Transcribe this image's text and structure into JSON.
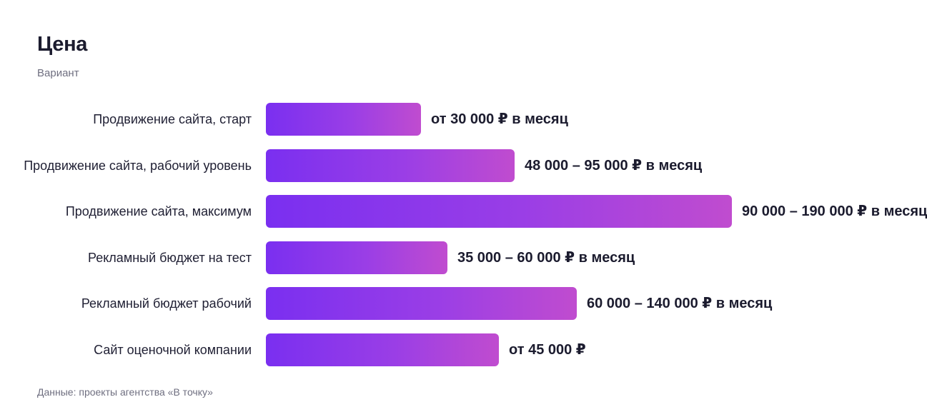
{
  "chart_data": {
    "type": "bar",
    "orientation": "horizontal",
    "title": "Цена",
    "subtitle": "Вариант",
    "source": "Данные: проекты агентства «В точку»",
    "categories": [
      "Продвижение сайта, старт",
      "Продвижение сайта, рабочий уровень",
      "Продвижение сайта, максимум",
      "Рекламный бюджет на тест",
      "Рекламный бюджет рабочий",
      "Сайт оценочной компании"
    ],
    "value_labels": [
      "от 30 000 ₽ в месяц",
      "48 000 – 95 000 ₽ в месяц",
      "90 000 – 190 000 ₽ в месяц",
      "35 000 – 60 000 ₽ в месяц",
      "60 000 – 140 000 ₽ в месяц",
      "от 45 000 ₽"
    ],
    "values": [
      30000,
      48000,
      90000,
      35000,
      60000,
      45000
    ],
    "xlim": [
      0,
      90000
    ],
    "colors": {
      "bar_start": "#7a2ff0",
      "bar_end": "#c04ccf"
    }
  }
}
